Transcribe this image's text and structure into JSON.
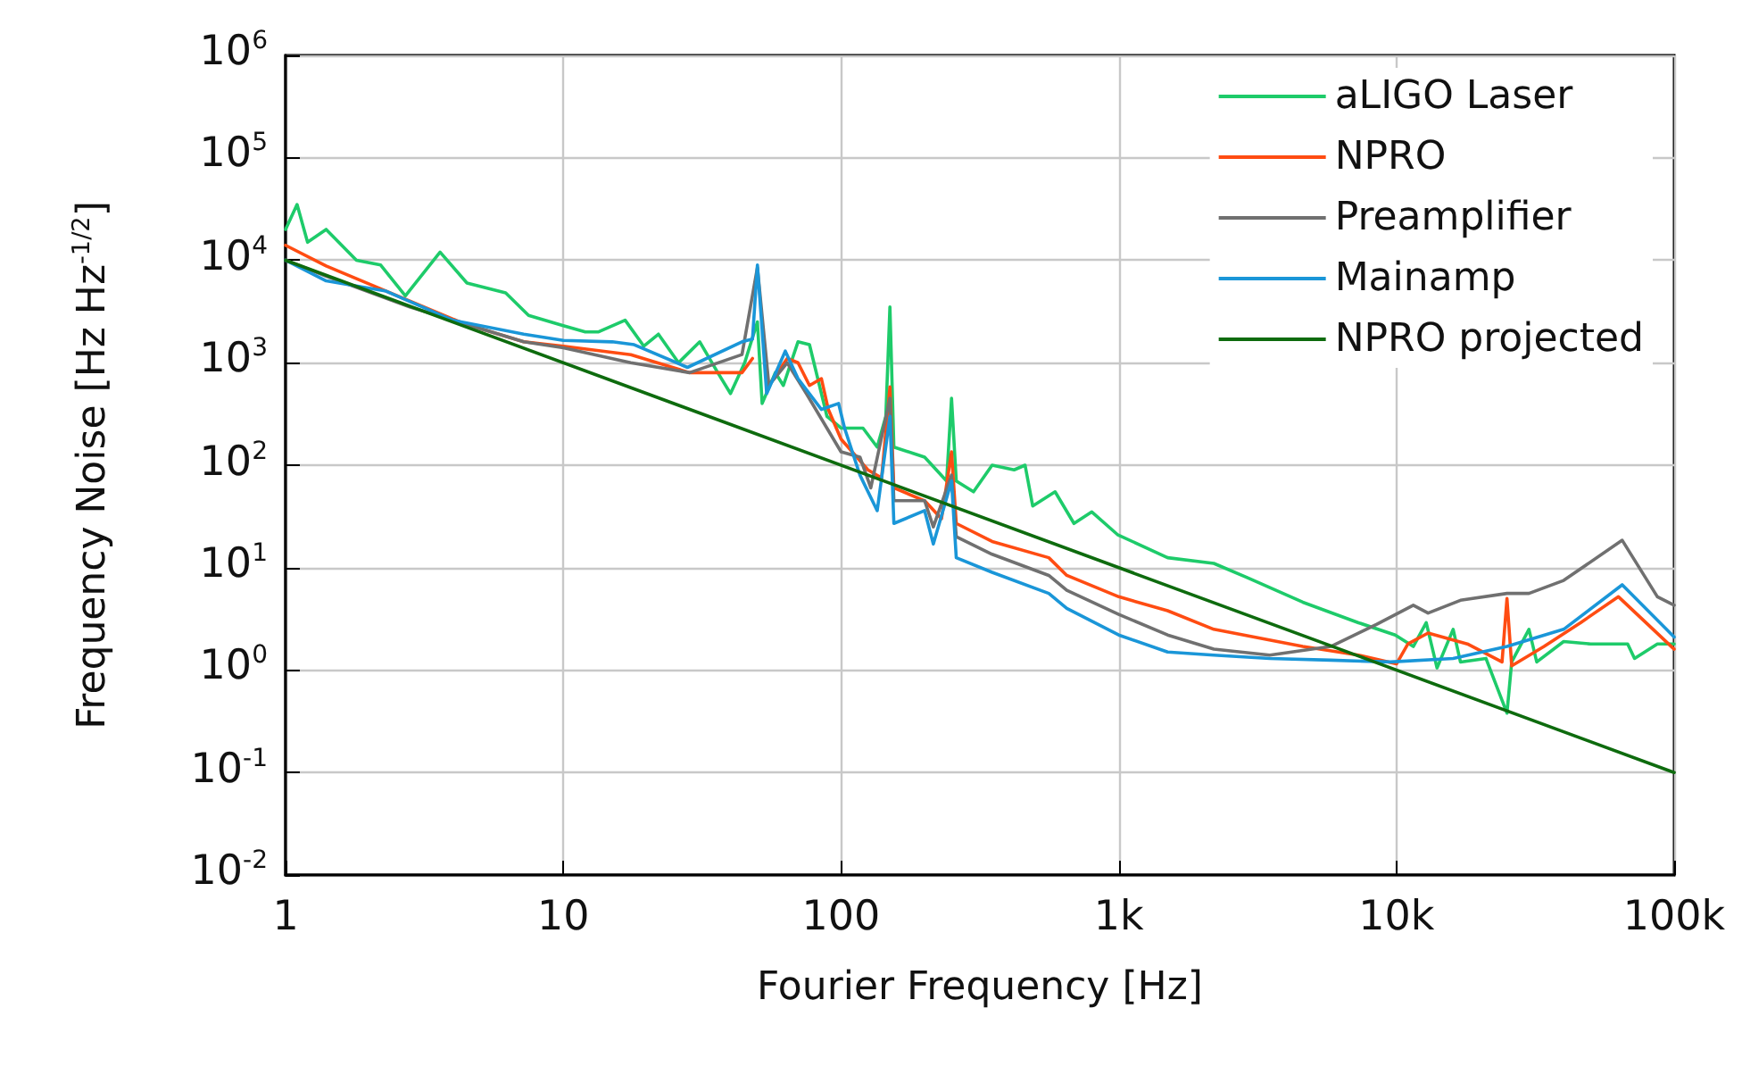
{
  "chart_data": {
    "type": "line",
    "xlabel": "Fourier Frequency [Hz]",
    "ylabel": "Frequency Noise [Hz Hz$^{-1/2}$]",
    "log": "xy",
    "grid": true,
    "legend": "top right",
    "xlim": [
      1,
      100000
    ],
    "xticks": [
      1,
      10,
      100,
      {
        "value": 1000,
        "label": "1k"
      },
      {
        "value": 10000,
        "label": "10k"
      },
      {
        "value": 100000,
        "label": "100k"
      }
    ],
    "ylim": [
      0.01,
      1000000
    ],
    "yticks": [
      {
        "value": 0.01,
        "label": "10$^{-2}$"
      },
      {
        "value": 0.1,
        "label": "10$^{-1}$"
      },
      {
        "value": 1,
        "label": "10$^{0}$"
      },
      {
        "value": 10,
        "label": "10$^{1}$"
      },
      {
        "value": 100,
        "label": "10$^{2}$"
      },
      {
        "value": 1000,
        "label": "10$^{3}$"
      },
      {
        "value": 10000,
        "label": "10$^{4}$"
      },
      {
        "value": 100000,
        "label": "10$^{5}$"
      },
      {
        "value": 1000000,
        "label": "10$^{6}$"
      }
    ],
    "series": [
      {
        "name": "aLIGO Laser",
        "color": "#1ecb6a",
        "x": [
          1,
          1.1,
          1.2,
          1.4,
          1.8,
          2.2,
          2.7,
          3.6,
          4.5,
          6.2,
          7.5,
          10,
          12,
          13.4,
          16.7,
          19.5,
          22,
          26,
          31,
          36,
          40,
          45,
          50,
          52,
          58,
          62,
          70,
          77,
          89,
          100,
          120,
          135,
          145,
          150,
          155,
          200,
          240,
          250,
          260,
          300,
          350,
          420,
          460,
          490,
          590,
          690,
          800,
          990,
          1500,
          2200,
          2900,
          4600,
          7300,
          9900,
          11500,
          12800,
          14000,
          16000,
          17000,
          21000,
          25000,
          26000,
          30000,
          32000,
          40000,
          50000,
          68000,
          72000,
          87000,
          100000
        ],
        "values": [
          20000,
          35000,
          15000,
          20000,
          10000,
          9000,
          4500,
          12000,
          6000,
          4800,
          2900,
          2300,
          2000,
          2000,
          2600,
          1450,
          1900,
          1000,
          1600,
          800,
          500,
          1000,
          2500,
          400,
          800,
          600,
          1600,
          1500,
          300,
          230,
          230,
          150,
          300,
          3500,
          150,
          120,
          70,
          450,
          70,
          55,
          100,
          90,
          100,
          40,
          55,
          27,
          35,
          21,
          12.5,
          11,
          8,
          4.6,
          2.9,
          2.2,
          1.7,
          2.9,
          1.05,
          2.5,
          1.2,
          1.3,
          0.38,
          1.2,
          2.5,
          1.2,
          1.9,
          1.8,
          1.8,
          1.3,
          1.8,
          1.8
        ]
      },
      {
        "name": "NPRO",
        "color": "#ff4c12",
        "x": [
          1,
          1.4,
          2.8,
          4.4,
          7.2,
          10,
          17.5,
          28.5,
          44,
          48,
          50,
          55,
          64,
          70,
          77,
          85,
          90,
          100,
          125,
          140,
          150,
          155,
          200,
          230,
          250,
          260,
          350,
          560,
          650,
          1000,
          1500,
          2200,
          4600,
          7300,
          10000,
          11000,
          13000,
          18000,
          24000,
          25000,
          26000,
          34000,
          46000,
          63000,
          100000
        ],
        "values": [
          14000,
          8800,
          4000,
          2400,
          1600,
          1450,
          1200,
          800,
          800,
          1100,
          null,
          600,
          1100,
          1000,
          600,
          700,
          350,
          180,
          90,
          75,
          580,
          60,
          45,
          30,
          135,
          27,
          18,
          12.5,
          8.4,
          5.2,
          3.8,
          2.5,
          1.7,
          1.4,
          1.15,
          1.8,
          2.3,
          1.8,
          1.2,
          5,
          1.1,
          1.7,
          2.9,
          5.2,
          1.6
        ]
      },
      {
        "name": "Preamplifier",
        "color": "#707070",
        "x": [
          1,
          1.4,
          2.8,
          7.2,
          10,
          17.5,
          28.5,
          44,
          50,
          55,
          64,
          75,
          100,
          117,
          128,
          150,
          155,
          200,
          215,
          250,
          260,
          350,
          560,
          650,
          1000,
          1500,
          2200,
          3500,
          5800,
          8500,
          11500,
          13000,
          17000,
          25000,
          30000,
          40000,
          65000,
          87000,
          100000
        ],
        "values": [
          10000,
          7000,
          3500,
          1600,
          1400,
          1000,
          800,
          1200,
          8500,
          600,
          1000,
          500,
          135,
          120,
          60,
          450,
          45,
          45,
          25,
          80,
          20,
          13.5,
          8.4,
          6,
          3.5,
          2.2,
          1.6,
          1.4,
          1.7,
          2.8,
          4.3,
          3.6,
          4.8,
          5.6,
          5.6,
          7.5,
          18.5,
          5.2,
          4.3
        ]
      },
      {
        "name": "Mainamp",
        "color": "#1a96d8",
        "x": [
          1,
          1.4,
          2.3,
          4,
          7.2,
          10,
          15,
          18,
          28,
          44,
          48,
          50,
          54,
          63,
          70,
          85,
          98,
          103,
          117,
          135,
          150,
          155,
          200,
          215,
          250,
          260,
          350,
          560,
          650,
          1000,
          1500,
          2200,
          3500,
          5800,
          9500,
          16000,
          25000,
          40000,
          65000,
          100000
        ],
        "values": [
          10000,
          6300,
          5000,
          2600,
          1900,
          1650,
          1600,
          1500,
          900,
          1600,
          1700,
          9000,
          500,
          1300,
          700,
          350,
          400,
          230,
          80,
          36,
          300,
          27,
          36,
          17,
          70,
          12.5,
          9,
          5.6,
          4,
          2.2,
          1.5,
          1.4,
          1.3,
          1.25,
          1.2,
          1.3,
          1.7,
          2.5,
          6.8,
          2.1
        ]
      },
      {
        "name": "NPRO projected",
        "color": "#0e6b0e",
        "x": [
          1,
          100000
        ],
        "values": [
          10000,
          0.1
        ]
      }
    ]
  }
}
